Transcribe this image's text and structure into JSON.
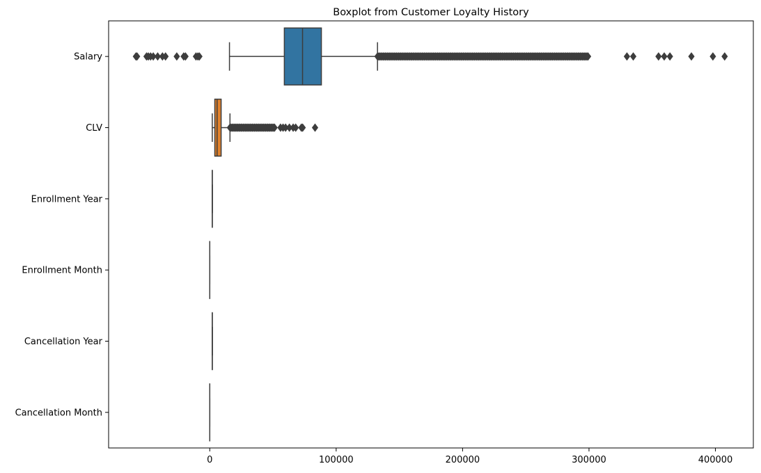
{
  "chart_data": {
    "type": "boxplot",
    "orientation": "horizontal",
    "title": "Boxplot from Customer Loyalty History",
    "xlabel": "",
    "ylabel": "",
    "xlim": [
      -80000,
      430000
    ],
    "x_ticks": [
      0,
      100000,
      200000,
      300000,
      400000
    ],
    "x_tick_labels": [
      "0",
      "100000",
      "200000",
      "300000",
      "400000"
    ],
    "grid": false,
    "legend": "none",
    "categories": [
      "Salary",
      "CLV",
      "Enrollment Year",
      "Enrollment Month",
      "Cancellation Year",
      "Cancellation Month"
    ],
    "series": [
      {
        "category": "Salary",
        "color": "#3274a1",
        "whisker_low": 15600,
        "q1": 59000,
        "median": 73400,
        "q3": 88300,
        "whisker_high": 132700,
        "outliers": [
          -58400,
          -57500,
          -50000,
          -48600,
          -46800,
          -44700,
          -41200,
          -37400,
          -35000,
          -26100,
          -20600,
          -19200,
          -10900,
          -9400,
          -8200,
          330000,
          335000,
          355000,
          359500,
          364000,
          381000,
          398000,
          407300
        ],
        "outlier_band": [
          132700,
          300000
        ]
      },
      {
        "category": "CLV",
        "color": "#e1812c",
        "whisker_low": 2000,
        "q1": 4000,
        "median": 5800,
        "q3": 9000,
        "whisker_high": 16000,
        "outliers": [
          56000,
          58000,
          60000,
          63000,
          66000,
          68000,
          72500,
          73500,
          83300
        ],
        "outlier_band": [
          16000,
          52000
        ]
      },
      {
        "category": "Enrollment Year",
        "color": "#3a923a",
        "whisker_low": 2012,
        "q1": 2014,
        "median": 2016,
        "q3": 2017,
        "whisker_high": 2018,
        "outliers": []
      },
      {
        "category": "Enrollment Month",
        "color": "#c03d3e",
        "whisker_low": 1,
        "q1": 3,
        "median": 6,
        "q3": 9,
        "whisker_high": 12,
        "outliers": []
      },
      {
        "category": "Cancellation Year",
        "color": "#9372b2",
        "whisker_low": 2013,
        "q1": 2016,
        "median": 2017,
        "q3": 2018,
        "whisker_high": 2018,
        "outliers": []
      },
      {
        "category": "Cancellation Month",
        "color": "#845b53",
        "whisker_low": 1,
        "q1": 4,
        "median": 7,
        "q3": 10,
        "whisker_high": 12,
        "outliers": []
      }
    ]
  }
}
